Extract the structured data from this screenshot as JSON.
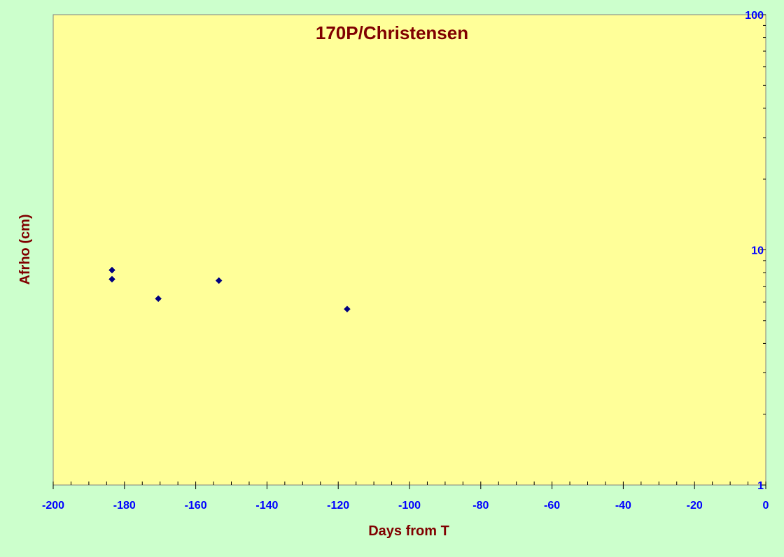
{
  "chart_data": {
    "type": "scatter",
    "title": "170P/Christensen",
    "xlabel": "Days from T",
    "ylabel": "Afrho (cm)",
    "xlim": [
      -200,
      0
    ],
    "ylim": [
      1,
      100
    ],
    "yscale": "log",
    "y_axis_position": "right",
    "x_ticks": [
      -200,
      -180,
      -160,
      -140,
      -120,
      -100,
      -80,
      -60,
      -40,
      -20,
      0
    ],
    "y_ticks": [
      1,
      10,
      100
    ],
    "grid": false,
    "legend": "none",
    "series": [
      {
        "points": [
          {
            "x": -183.5,
            "y": 8.2
          },
          {
            "x": -183.5,
            "y": 7.5
          },
          {
            "x": -170.5,
            "y": 6.2
          },
          {
            "x": -153.5,
            "y": 7.4
          },
          {
            "x": -117.5,
            "y": 5.6
          }
        ]
      }
    ],
    "colors": {
      "background": "#ccffcc",
      "plot_area": "#ffff99",
      "marker": "#000080",
      "title_text": "#800000",
      "tick_text": "#0000ff"
    }
  }
}
